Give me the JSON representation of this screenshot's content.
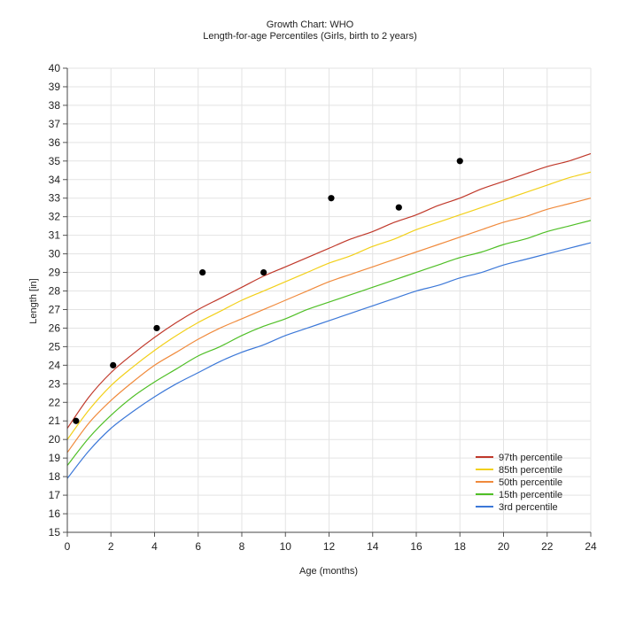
{
  "chart_data": {
    "type": "line",
    "title": "Growth Chart: WHO",
    "subtitle": "Length-for-age Percentiles (Girls, birth to 2 years)",
    "xlabel": "Age (months)",
    "ylabel": "Length [in]",
    "xlim": [
      0,
      24
    ],
    "ylim": [
      15,
      40
    ],
    "xticks": [
      0,
      2,
      4,
      6,
      8,
      10,
      12,
      14,
      16,
      18,
      20,
      22,
      24
    ],
    "yticks": [
      15,
      16,
      17,
      18,
      19,
      20,
      21,
      22,
      23,
      24,
      25,
      26,
      27,
      28,
      29,
      30,
      31,
      32,
      33,
      34,
      35,
      36,
      37,
      38,
      39,
      40
    ],
    "grid": true,
    "legend_position": "bottom-right",
    "x": [
      0,
      1,
      2,
      3,
      4,
      5,
      6,
      7,
      8,
      9,
      10,
      11,
      12,
      13,
      14,
      15,
      16,
      17,
      18,
      19,
      20,
      21,
      22,
      23,
      24
    ],
    "series": [
      {
        "name": "97th percentile",
        "color": "#c0392b",
        "values": [
          20.6,
          22.3,
          23.6,
          24.6,
          25.5,
          26.3,
          27.0,
          27.6,
          28.2,
          28.8,
          29.3,
          29.8,
          30.3,
          30.8,
          31.2,
          31.7,
          32.1,
          32.6,
          33.0,
          33.5,
          33.9,
          34.3,
          34.7,
          35.0,
          35.4
        ]
      },
      {
        "name": "85th percentile",
        "color": "#f2d01a",
        "values": [
          20.0,
          21.6,
          22.9,
          23.9,
          24.8,
          25.6,
          26.3,
          26.9,
          27.5,
          28.0,
          28.5,
          29.0,
          29.5,
          29.9,
          30.4,
          30.8,
          31.3,
          31.7,
          32.1,
          32.5,
          32.9,
          33.3,
          33.7,
          34.1,
          34.4
        ]
      },
      {
        "name": "50th percentile",
        "color": "#f08a3c",
        "values": [
          19.3,
          20.9,
          22.1,
          23.1,
          24.0,
          24.7,
          25.4,
          26.0,
          26.5,
          27.0,
          27.5,
          28.0,
          28.5,
          28.9,
          29.3,
          29.7,
          30.1,
          30.5,
          30.9,
          31.3,
          31.7,
          32.0,
          32.4,
          32.7,
          33.0
        ]
      },
      {
        "name": "15th percentile",
        "color": "#4fbf26",
        "values": [
          18.6,
          20.1,
          21.3,
          22.3,
          23.1,
          23.8,
          24.5,
          25.0,
          25.6,
          26.1,
          26.5,
          27.0,
          27.4,
          27.8,
          28.2,
          28.6,
          29.0,
          29.4,
          29.8,
          30.1,
          30.5,
          30.8,
          31.2,
          31.5,
          31.8
        ]
      },
      {
        "name": "3rd percentile",
        "color": "#3c78d8",
        "values": [
          17.9,
          19.4,
          20.6,
          21.5,
          22.3,
          23.0,
          23.6,
          24.2,
          24.7,
          25.1,
          25.6,
          26.0,
          26.4,
          26.8,
          27.2,
          27.6,
          28.0,
          28.3,
          28.7,
          29.0,
          29.4,
          29.7,
          30.0,
          30.3,
          30.6
        ]
      }
    ],
    "points": {
      "color": "#000000",
      "x": [
        0.4,
        2.1,
        4.1,
        6.2,
        9.0,
        12.1,
        15.2,
        18.0
      ],
      "y": [
        21.0,
        24.0,
        26.0,
        29.0,
        29.0,
        33.0,
        32.5,
        35.0
      ]
    }
  }
}
